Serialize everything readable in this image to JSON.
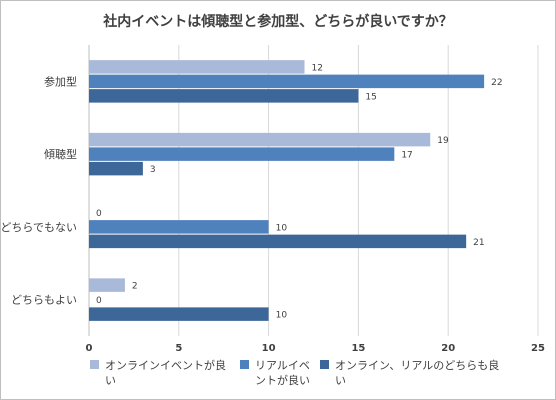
{
  "chart_data": {
    "type": "bar",
    "orientation": "horizontal",
    "title": "社内イベントは傾聴型と参加型、どちらが良いですか？",
    "categories": [
      "参加型",
      "傾聴型",
      "どちらでもない",
      "どちらもよい"
    ],
    "series": [
      {
        "name": "オンラインイベントが良い",
        "values": [
          12,
          19,
          0,
          2
        ],
        "color": "#a9b9d9"
      },
      {
        "name": "リアルイベントが良い",
        "values": [
          22,
          17,
          10,
          0
        ],
        "color": "#4f81bd"
      },
      {
        "name": "オンライン、リアルのどちらも良い",
        "values": [
          15,
          3,
          21,
          10
        ],
        "color": "#3e6799"
      }
    ],
    "xlim": [
      0,
      25
    ],
    "xticks": [
      0,
      5,
      10,
      15,
      20,
      25
    ],
    "grid": true,
    "data_labels": true,
    "legend_position": "bottom"
  },
  "legend_lines": [
    [
      "オンラインイベントが良い"
    ],
    [
      "リアルイベ",
      "ントが良い"
    ],
    [
      "オンライン、リアルのどちらも良",
      "い"
    ]
  ]
}
